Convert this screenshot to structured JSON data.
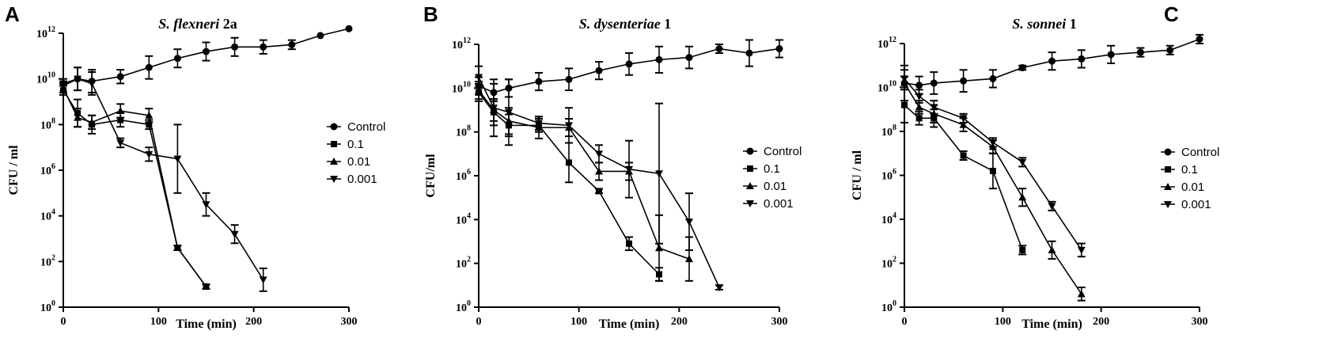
{
  "figure_labels": [
    "A",
    "B",
    "C"
  ],
  "chart_data": [
    {
      "type": "line",
      "panel": "A",
      "title": "S. flexneri",
      "title_suffix": " 2a",
      "xlabel": "Time (min)",
      "ylabel": "CFU / ml",
      "xlim": [
        0,
        300
      ],
      "ylim_log10": [
        0,
        12
      ],
      "xticks": [
        0,
        100,
        200,
        300
      ],
      "yticks_exp": [
        0,
        2,
        4,
        6,
        8,
        10,
        12
      ],
      "ytick_base": "10",
      "legend_position": "right-middle",
      "series": [
        {
          "name": "Control",
          "marker": "circle",
          "x": [
            0,
            15,
            30,
            60,
            90,
            120,
            150,
            180,
            210,
            240,
            270,
            300
          ],
          "log10": [
            9.8,
            10.0,
            9.9,
            10.1,
            10.5,
            10.9,
            11.2,
            11.4,
            11.4,
            11.5,
            11.9,
            12.2
          ],
          "err": [
            0.1,
            0.5,
            0.5,
            0.3,
            0.5,
            0.4,
            0.4,
            0.4,
            0.3,
            0.2,
            0,
            0
          ]
        },
        {
          "name": "0.1",
          "marker": "square",
          "x": [
            0,
            15,
            30,
            60,
            90,
            120,
            150
          ],
          "log10": [
            9.5,
            8.5,
            8.0,
            8.2,
            8.0,
            2.6,
            0.9
          ],
          "err": [
            0.2,
            0.6,
            0.4,
            0.3,
            0.2,
            0.1,
            0.1
          ]
        },
        {
          "name": "0.01",
          "marker": "triangle-up",
          "x": [
            0,
            15,
            30,
            60,
            90,
            120,
            150
          ],
          "log10": [
            9.6,
            8.3,
            8.1,
            8.6,
            8.4,
            2.6,
            0.9
          ],
          "err": [
            0.2,
            0.4,
            0.3,
            0.3,
            0.3,
            0.1,
            0.1
          ]
        },
        {
          "name": "0.001",
          "marker": "triangle-down",
          "x": [
            0,
            15,
            30,
            60,
            90,
            120,
            150,
            180,
            210
          ],
          "log10": [
            9.7,
            10.0,
            9.8,
            7.2,
            6.7,
            6.5,
            4.5,
            3.2,
            1.2
          ],
          "err": [
            0.3,
            0.5,
            0.5,
            0.2,
            0.3,
            1.5,
            0.5,
            0.4,
            0.5
          ]
        }
      ]
    },
    {
      "type": "line",
      "panel": "B",
      "title": "S. dysenteriae",
      "title_suffix": " 1",
      "xlabel": "Time (min)",
      "ylabel": "CFU/ml",
      "xlim": [
        0,
        300
      ],
      "ylim_log10": [
        0,
        12
      ],
      "xticks": [
        0,
        100,
        200,
        300
      ],
      "yticks_exp": [
        0,
        2,
        4,
        6,
        8,
        10,
        12
      ],
      "ytick_base": "10",
      "legend_position": "right-middle",
      "series": [
        {
          "name": "Control",
          "marker": "circle",
          "x": [
            0,
            15,
            30,
            60,
            90,
            120,
            150,
            180,
            210,
            240,
            270,
            300
          ],
          "log10": [
            10.1,
            9.8,
            10.0,
            10.3,
            10.4,
            10.8,
            11.1,
            11.3,
            11.4,
            11.8,
            11.6,
            11.8
          ],
          "err": [
            0.4,
            0.4,
            0.4,
            0.4,
            0.5,
            0.4,
            0.5,
            0.6,
            0.5,
            0.2,
            0.6,
            0.4
          ]
        },
        {
          "name": "0.1",
          "marker": "square",
          "x": [
            0,
            15,
            30,
            60,
            90,
            120,
            150,
            180
          ],
          "log10": [
            9.8,
            8.9,
            8.3,
            8.3,
            6.6,
            5.3,
            2.9,
            1.5
          ],
          "err": [
            0.4,
            0.6,
            0.5,
            0.3,
            0.9,
            0.1,
            0.3,
            0.3
          ]
        },
        {
          "name": "0.01",
          "marker": "triangle-up",
          "x": [
            0,
            15,
            30,
            60,
            90,
            120,
            150,
            180,
            210
          ],
          "log10": [
            9.9,
            9.0,
            8.5,
            8.2,
            8.2,
            6.2,
            6.2,
            2.7,
            2.2
          ],
          "err": [
            0.4,
            0.5,
            0.6,
            0.5,
            0.4,
            0.4,
            0.4,
            1.5,
            1.0
          ]
        },
        {
          "name": "0.001",
          "marker": "triangle-down",
          "x": [
            0,
            15,
            30,
            60,
            90,
            120,
            150,
            180,
            210,
            240
          ],
          "log10": [
            10.5,
            9.1,
            8.9,
            8.4,
            8.3,
            7.0,
            6.3,
            6.1,
            3.9,
            0.9
          ],
          "err": [
            0.5,
            1.3,
            1.5,
            0.3,
            0.8,
            0.4,
            1.3,
            3.2,
            1.3,
            0.1
          ]
        }
      ]
    },
    {
      "type": "line",
      "panel": "C",
      "title": "S. sonnei",
      "title_suffix": " 1",
      "xlabel": "Time (min)",
      "ylabel": "CFU / ml",
      "xlim": [
        0,
        300
      ],
      "ylim_log10": [
        0,
        12
      ],
      "xticks": [
        0,
        100,
        200,
        300
      ],
      "yticks_exp": [
        0,
        2,
        4,
        6,
        8,
        10,
        12
      ],
      "ytick_base": "10",
      "legend_position": "right-middle",
      "series": [
        {
          "name": "Control",
          "marker": "circle",
          "x": [
            0,
            15,
            30,
            60,
            90,
            120,
            150,
            180,
            210,
            240,
            270,
            300
          ],
          "log10": [
            10.2,
            10.1,
            10.2,
            10.3,
            10.4,
            10.9,
            11.2,
            11.3,
            11.5,
            11.6,
            11.7,
            12.2
          ],
          "err": [
            0.8,
            0.4,
            0.5,
            0.5,
            0.4,
            0.1,
            0.4,
            0.4,
            0.4,
            0.2,
            0.2,
            0.2
          ]
        },
        {
          "name": "0.1",
          "marker": "square",
          "x": [
            0,
            15,
            30,
            60,
            90,
            120
          ],
          "log10": [
            9.2,
            8.6,
            8.6,
            6.9,
            6.2,
            2.6
          ],
          "err": [
            0.8,
            0.3,
            0.4,
            0.2,
            0.8,
            0.2
          ]
        },
        {
          "name": "0.01",
          "marker": "triangle-up",
          "x": [
            0,
            15,
            30,
            60,
            90,
            120,
            150,
            180
          ],
          "log10": [
            10.2,
            9.1,
            8.8,
            8.3,
            7.3,
            5.0,
            2.6,
            0.6
          ],
          "err": [
            0.3,
            0.3,
            0.4,
            0.3,
            0.3,
            0.4,
            0.4,
            0.3
          ]
        },
        {
          "name": "0.001",
          "marker": "triangle-down",
          "x": [
            0,
            15,
            30,
            60,
            90,
            120,
            150,
            180
          ],
          "log10": [
            10.4,
            9.6,
            9.1,
            8.6,
            7.5,
            6.6,
            4.6,
            2.6
          ],
          "err": [
            0.4,
            0.3,
            0.3,
            0.2,
            0.2,
            0.2,
            0.2,
            0.3
          ]
        }
      ]
    }
  ]
}
